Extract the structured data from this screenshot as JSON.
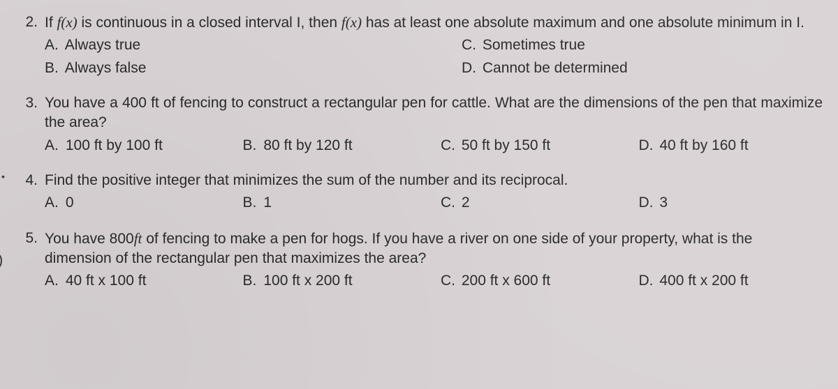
{
  "q2": {
    "number": "2.",
    "stem_parts": {
      "a": "If ",
      "fx1": "f(x)",
      "b": " is continuous in a closed interval I, then ",
      "fx2": "f(x)",
      "c": " has at least one absolute maximum and one absolute minimum in I."
    },
    "choices": {
      "A": {
        "letter": "A.",
        "text": "Always true"
      },
      "B": {
        "letter": "B.",
        "text": "Always false"
      },
      "C": {
        "letter": "C.",
        "text": "Sometimes true"
      },
      "D": {
        "letter": "D.",
        "text": "Cannot be determined"
      }
    }
  },
  "q3": {
    "number": "3.",
    "stem": "You have a 400 ft of fencing to construct a rectangular pen for cattle. What are the dimensions of the pen that maximize the area?",
    "choices": {
      "A": {
        "letter": "A.",
        "text": "100 ft by 100 ft"
      },
      "B": {
        "letter": "B.",
        "text": "80 ft by 120 ft"
      },
      "C": {
        "letter": "C.",
        "text": "50 ft by 150 ft"
      },
      "D": {
        "letter": "D.",
        "text": "40 ft by 160 ft"
      }
    }
  },
  "q4": {
    "number": "4.",
    "stem": "Find the positive integer that minimizes the sum of the number and its reciprocal.",
    "choices": {
      "A": {
        "letter": "A.",
        "text": "0"
      },
      "B": {
        "letter": "B.",
        "text": "1"
      },
      "C": {
        "letter": "C.",
        "text": "2"
      },
      "D": {
        "letter": "D.",
        "text": "3"
      }
    }
  },
  "q5": {
    "number": "5.",
    "stem_parts": {
      "a": "You have 800",
      "ft": "ft",
      "b": " of fencing to make a pen for hogs. If you have a river on one side of your property, what is the dimension of the rectangular pen that maximizes the area?"
    },
    "choices": {
      "A": {
        "letter": "A.",
        "text": "40 ft x 100 ft"
      },
      "B": {
        "letter": "B.",
        "text": "100 ft x 200 ft"
      },
      "C": {
        "letter": "C.",
        "text": "200 ft x 600 ft"
      },
      "D": {
        "letter": "D.",
        "text": "400 ft x 200 ft"
      }
    }
  }
}
